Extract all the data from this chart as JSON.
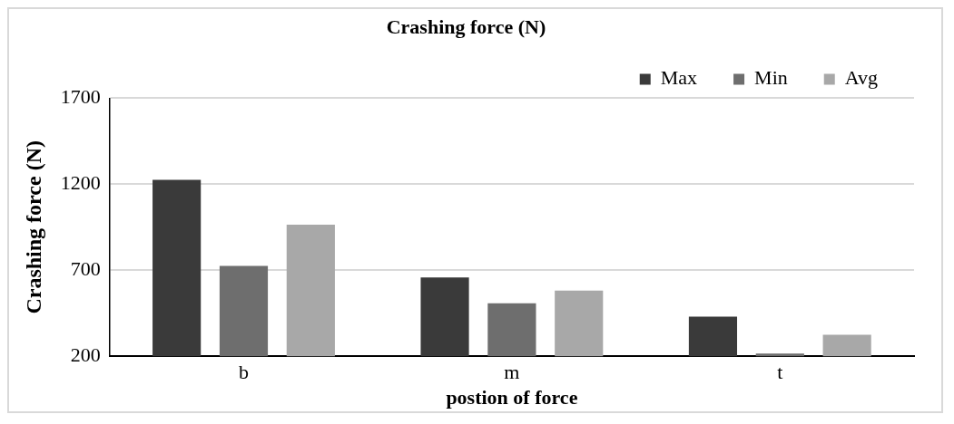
{
  "chart_data": {
    "type": "bar",
    "title": "Crashing force (N)",
    "xlabel": "postion of force",
    "ylabel": "Crashing force (N)",
    "categories": [
      "b",
      "m",
      "t"
    ],
    "series": [
      {
        "name": "Max",
        "color": "#3a3a3a",
        "values": [
          1225,
          658,
          430
        ]
      },
      {
        "name": "Min",
        "color": "#6e6e6e",
        "values": [
          725,
          508,
          215
        ]
      },
      {
        "name": "Avg",
        "color": "#a8a8a8",
        "values": [
          965,
          582,
          325
        ]
      }
    ],
    "ylim": [
      200,
      1700
    ],
    "yticks": [
      200,
      700,
      1200,
      1700
    ],
    "grid": "y",
    "legend": "top right"
  }
}
